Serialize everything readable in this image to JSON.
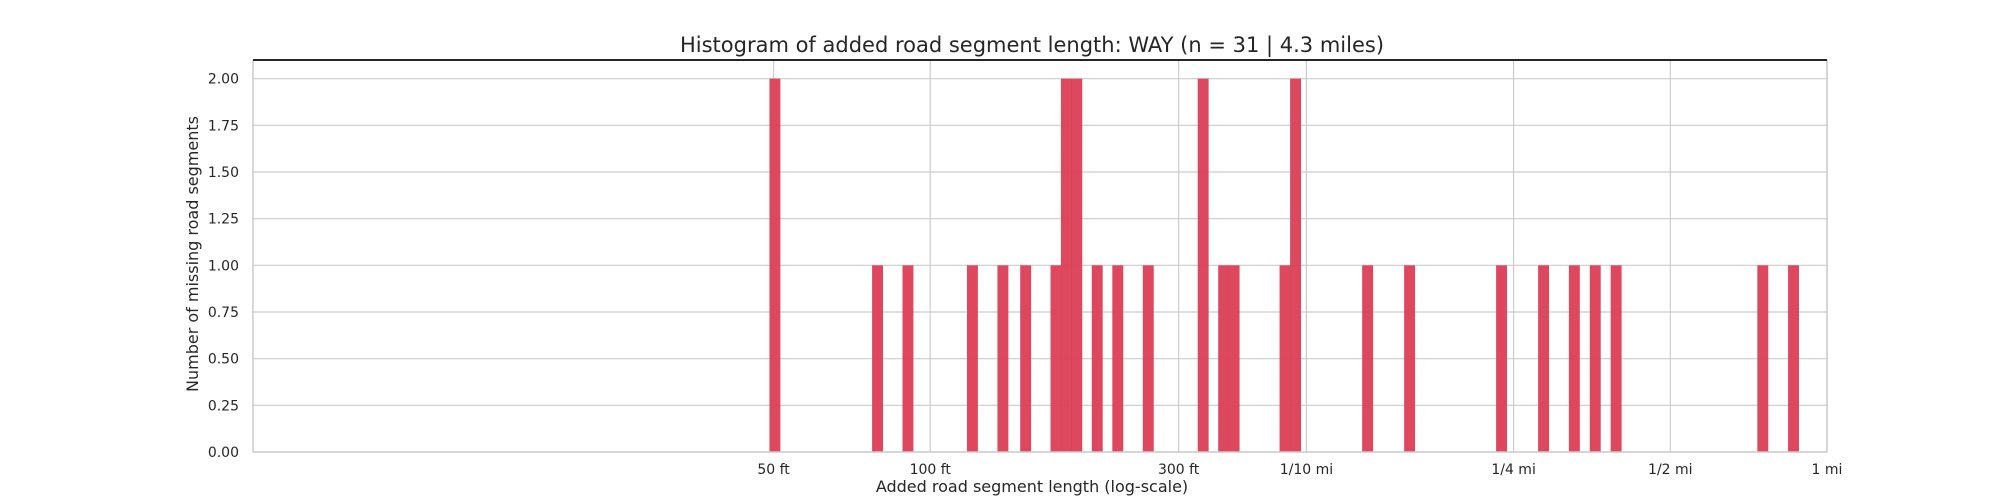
{
  "chart_data": {
    "type": "bar",
    "title": "Histogram of added road segment length: WAY (n = 31 | 4.3 miles)",
    "xlabel": "Added road segment  length (log-scale)",
    "ylabel": "Number of missing road segments",
    "x_scale": "log",
    "x_unit": "ft",
    "xlim": [
      5,
      5280
    ],
    "ylim": [
      0,
      2.1
    ],
    "grid": true,
    "bar_color": "#dc3e55",
    "x_ticks": [
      {
        "value": 50,
        "label": "50 ft"
      },
      {
        "value": 100,
        "label": "100 ft"
      },
      {
        "value": 300,
        "label": "300 ft"
      },
      {
        "value": 528,
        "label": "1/10 mi"
      },
      {
        "value": 1320,
        "label": "1/4 mi"
      },
      {
        "value": 2640,
        "label": "1/2 mi"
      },
      {
        "value": 5280,
        "label": "1 mi"
      }
    ],
    "y_ticks": [
      "0.00",
      "0.25",
      "0.50",
      "0.75",
      "1.00",
      "1.25",
      "1.50",
      "1.75",
      "2.00"
    ],
    "bins": [
      {
        "x": 50.3,
        "count": 2
      },
      {
        "x": 79.2,
        "count": 1
      },
      {
        "x": 90.6,
        "count": 1
      },
      {
        "x": 120.5,
        "count": 1
      },
      {
        "x": 137.9,
        "count": 1
      },
      {
        "x": 152.5,
        "count": 1
      },
      {
        "x": 174.4,
        "count": 1
      },
      {
        "x": 182.6,
        "count": 2
      },
      {
        "x": 191.2,
        "count": 2
      },
      {
        "x": 209.3,
        "count": 1
      },
      {
        "x": 229.2,
        "count": 1
      },
      {
        "x": 262.3,
        "count": 1
      },
      {
        "x": 334.4,
        "count": 2
      },
      {
        "x": 366.1,
        "count": 1
      },
      {
        "x": 383.4,
        "count": 1
      },
      {
        "x": 480.3,
        "count": 1
      },
      {
        "x": 503.2,
        "count": 2
      },
      {
        "x": 692.1,
        "count": 1
      },
      {
        "x": 833.3,
        "count": 1
      },
      {
        "x": 1251.6,
        "count": 1
      },
      {
        "x": 1507.2,
        "count": 1
      },
      {
        "x": 1727.0,
        "count": 1
      },
      {
        "x": 1894.3,
        "count": 1
      },
      {
        "x": 2077.5,
        "count": 1
      },
      {
        "x": 3974.8,
        "count": 1
      },
      {
        "x": 4553.6,
        "count": 1
      }
    ]
  }
}
